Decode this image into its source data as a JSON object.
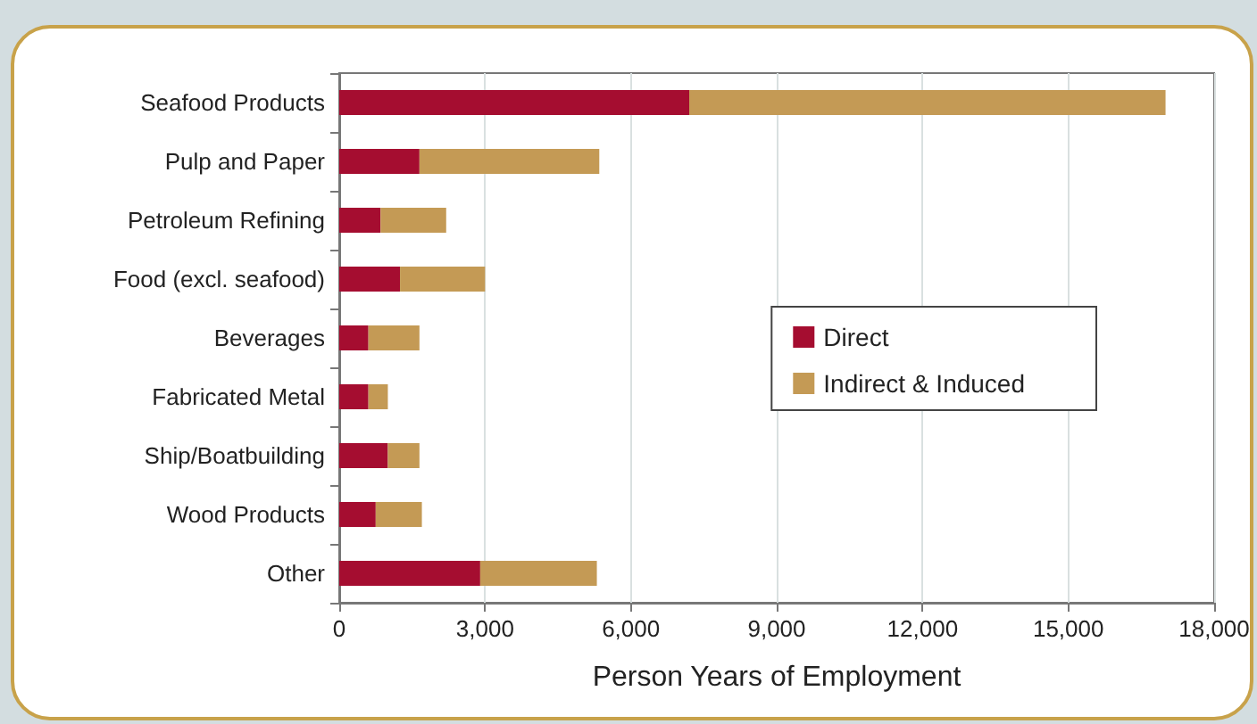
{
  "chart_data": {
    "type": "bar",
    "orientation": "horizontal",
    "stacked": true,
    "categories": [
      "Seafood Products",
      "Pulp and Paper",
      "Petroleum Refining",
      "Food (excl. seafood)",
      "Beverages",
      "Fabricated Metal",
      "Ship/Boatbuilding",
      "Wood Products",
      "Other"
    ],
    "series": [
      {
        "name": "Direct",
        "color": "#a50d30",
        "values": [
          7200,
          1650,
          850,
          1250,
          600,
          600,
          1000,
          750,
          2900
        ]
      },
      {
        "name": "Indirect & Induced",
        "color": "#c49a55",
        "values": [
          9800,
          3700,
          1350,
          1750,
          1050,
          400,
          650,
          950,
          2400
        ]
      }
    ],
    "xlabel": "Person Years of Employment",
    "xlim": [
      0,
      18000
    ],
    "xticks": [
      0,
      {
        "value": 3000,
        "label": "3,000"
      },
      {
        "value": 6000,
        "label": "6,000"
      },
      {
        "value": 9000,
        "label": "9,000"
      },
      {
        "value": 12000,
        "label": "12,000"
      },
      {
        "value": 15000,
        "label": "15,000"
      },
      {
        "value": 18000,
        "label": "18,000"
      }
    ],
    "grid": "x",
    "legend": "right"
  }
}
